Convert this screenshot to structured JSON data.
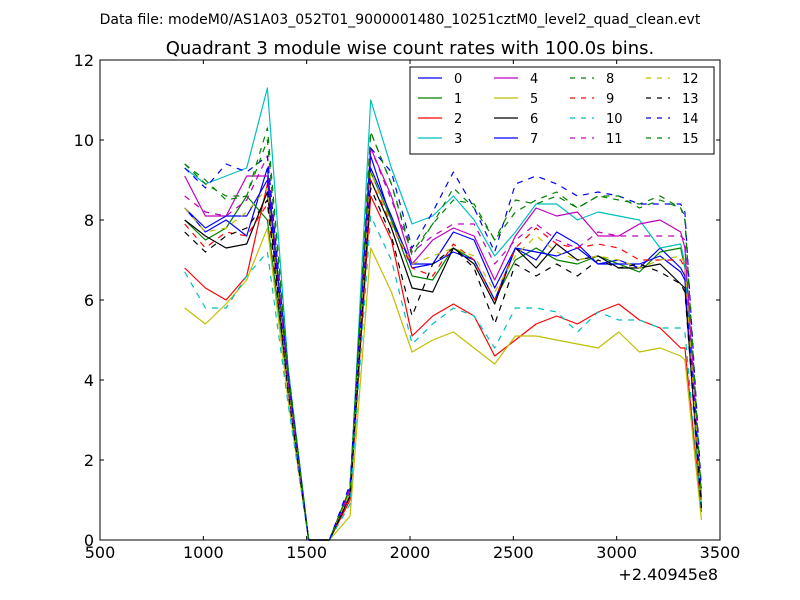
{
  "figure": {
    "suptitle": "Data file: modeM0/AS1A03_052T01_9000001480_10251cztM0_level2_quad_clean.evt"
  },
  "chart_data": {
    "type": "line",
    "title": "Quadrant 3 module wise count rates with 100.0s bins.",
    "xlabel": "",
    "ylabel": "",
    "x_offset_label": "+2.40945e8",
    "xlim": [
      500,
      3500
    ],
    "ylim": [
      0,
      12
    ],
    "x_ticks": [
      500,
      1000,
      1500,
      2000,
      2500,
      3000,
      3500
    ],
    "y_ticks": [
      0,
      2,
      4,
      6,
      8,
      10,
      12
    ],
    "grid": false,
    "legend_position": "top-right",
    "legend_columns": 4,
    "x": [
      910,
      1010,
      1110,
      1210,
      1310,
      1410,
      1510,
      1610,
      1710,
      1810,
      1910,
      2010,
      2110,
      2210,
      2310,
      2410,
      2510,
      2610,
      2710,
      2810,
      2910,
      3010,
      3110,
      3210,
      3310,
      3330,
      3410
    ],
    "series": [
      {
        "name": "0",
        "color": "#0000ff",
        "dash": "solid",
        "values": [
          8.3,
          7.7,
          8.0,
          7.6,
          9.3,
          4.0,
          0,
          0,
          1.3,
          9.6,
          8.0,
          6.9,
          6.9,
          7.7,
          7.5,
          6.3,
          7.3,
          7.0,
          7.7,
          7.4,
          6.9,
          7.0,
          6.8,
          7.3,
          6.8,
          6.6,
          1.0
        ]
      },
      {
        "name": "1",
        "color": "#008000",
        "dash": "solid",
        "values": [
          8.0,
          7.5,
          7.8,
          8.6,
          8.0,
          3.8,
          0,
          0,
          1.3,
          9.2,
          8.0,
          6.6,
          6.5,
          7.3,
          7.0,
          6.0,
          7.0,
          7.3,
          7.0,
          6.9,
          7.1,
          6.9,
          6.7,
          7.2,
          7.3,
          6.8,
          1.0
        ]
      },
      {
        "name": "2",
        "color": "#ff0000",
        "dash": "solid",
        "values": [
          6.8,
          6.3,
          6.0,
          6.6,
          8.9,
          3.8,
          0,
          0,
          1.0,
          8.6,
          7.5,
          5.1,
          5.6,
          5.9,
          5.6,
          4.6,
          5.0,
          5.4,
          5.6,
          5.4,
          5.7,
          5.9,
          5.5,
          5.3,
          4.8,
          4.8,
          0.7
        ]
      },
      {
        "name": "3",
        "color": "#00bfbf",
        "dash": "solid",
        "values": [
          9.3,
          8.9,
          9.1,
          9.3,
          11.3,
          4.3,
          0,
          0,
          1.2,
          11.0,
          9.3,
          7.9,
          8.1,
          8.6,
          8.0,
          7.1,
          7.7,
          8.4,
          8.4,
          8.0,
          8.2,
          8.1,
          8.0,
          7.3,
          7.4,
          6.9,
          1.0
        ]
      },
      {
        "name": "4",
        "color": "#bf00bf",
        "dash": "solid",
        "values": [
          9.1,
          8.1,
          8.1,
          9.1,
          9.1,
          4.0,
          0,
          0,
          1.2,
          9.8,
          8.6,
          6.9,
          7.5,
          7.8,
          7.6,
          6.5,
          7.6,
          8.3,
          8.1,
          8.2,
          7.6,
          7.6,
          7.9,
          8.0,
          7.7,
          7.3,
          1.0
        ]
      },
      {
        "name": "5",
        "color": "#bfbf00",
        "dash": "solid",
        "values": [
          5.8,
          5.4,
          5.9,
          6.5,
          7.8,
          3.5,
          0,
          0,
          0.6,
          7.3,
          6.2,
          4.7,
          5.0,
          5.2,
          4.8,
          4.4,
          5.1,
          5.1,
          5.0,
          4.9,
          4.8,
          5.2,
          4.7,
          4.8,
          4.6,
          4.5,
          0.5
        ]
      },
      {
        "name": "6",
        "color": "#000000",
        "dash": "solid",
        "values": [
          8.0,
          7.6,
          7.3,
          7.4,
          8.7,
          3.8,
          0,
          0,
          1.1,
          9.0,
          7.8,
          6.3,
          6.2,
          7.3,
          6.9,
          5.9,
          7.3,
          6.8,
          7.4,
          7.0,
          7.1,
          6.8,
          6.8,
          6.9,
          6.4,
          6.3,
          0.8
        ]
      },
      {
        "name": "7",
        "color": "#0000ff",
        "dash": "solid",
        "values": [
          8.3,
          7.8,
          8.1,
          8.1,
          9.0,
          4.0,
          0,
          0,
          1.3,
          9.3,
          8.1,
          6.8,
          6.9,
          7.2,
          7.0,
          6.0,
          7.3,
          7.2,
          7.1,
          7.3,
          6.9,
          6.9,
          6.9,
          7.1,
          6.7,
          6.5,
          1.0
        ]
      },
      {
        "name": "8",
        "color": "#008000",
        "dash": "dashed",
        "values": [
          9.4,
          9.0,
          8.5,
          8.6,
          10.3,
          4.3,
          0,
          0,
          1.3,
          10.2,
          8.9,
          7.2,
          7.9,
          8.8,
          8.3,
          7.5,
          8.5,
          8.4,
          8.6,
          8.3,
          8.6,
          8.5,
          8.4,
          8.6,
          8.3,
          8.0,
          1.1
        ]
      },
      {
        "name": "9",
        "color": "#ff0000",
        "dash": "dashed",
        "values": [
          7.9,
          7.3,
          7.7,
          7.6,
          8.4,
          3.8,
          0,
          0,
          1.1,
          9.0,
          7.9,
          6.8,
          6.6,
          7.4,
          7.0,
          6.0,
          7.3,
          7.8,
          7.4,
          7.3,
          7.4,
          7.3,
          7.0,
          7.0,
          7.0,
          6.8,
          0.9
        ]
      },
      {
        "name": "10",
        "color": "#00bfbf",
        "dash": "dashed",
        "values": [
          6.7,
          5.8,
          5.8,
          6.6,
          7.2,
          3.4,
          0,
          0,
          0.9,
          8.1,
          7.0,
          4.9,
          5.4,
          5.8,
          5.6,
          4.8,
          5.8,
          5.8,
          5.7,
          5.2,
          5.7,
          5.5,
          5.5,
          5.3,
          5.3,
          5.2,
          0.7
        ]
      },
      {
        "name": "11",
        "color": "#bf00bf",
        "dash": "dashed",
        "values": [
          8.6,
          8.2,
          8.1,
          8.5,
          9.6,
          3.9,
          0,
          0,
          1.3,
          9.8,
          8.5,
          7.2,
          7.6,
          7.9,
          7.9,
          6.9,
          7.5,
          7.9,
          7.5,
          7.3,
          7.7,
          7.6,
          7.6,
          7.6,
          7.6,
          7.5,
          1.0
        ]
      },
      {
        "name": "12",
        "color": "#bfbf00",
        "dash": "dashed",
        "values": [
          8.3,
          7.7,
          7.8,
          8.2,
          8.8,
          3.8,
          0,
          0,
          1.2,
          9.2,
          7.9,
          6.9,
          7.1,
          7.3,
          7.1,
          6.2,
          7.1,
          7.6,
          7.2,
          7.0,
          7.1,
          7.0,
          6.8,
          7.0,
          7.1,
          6.9,
          0.9
        ]
      },
      {
        "name": "13",
        "color": "#000000",
        "dash": "dashed",
        "values": [
          7.7,
          7.2,
          7.6,
          7.8,
          8.5,
          3.7,
          0,
          0,
          1.1,
          8.8,
          7.6,
          5.6,
          6.9,
          7.3,
          6.8,
          5.4,
          6.9,
          6.6,
          6.9,
          6.6,
          7.0,
          6.8,
          6.9,
          6.7,
          6.4,
          6.2,
          0.8
        ]
      },
      {
        "name": "14",
        "color": "#0000ff",
        "dash": "dashed",
        "values": [
          9.3,
          8.8,
          9.4,
          9.2,
          9.6,
          4.2,
          0,
          0,
          1.4,
          9.8,
          9.2,
          7.3,
          8.2,
          9.2,
          8.3,
          7.2,
          8.9,
          9.1,
          8.9,
          8.6,
          8.7,
          8.6,
          8.4,
          8.4,
          8.4,
          8.2,
          1.3
        ]
      },
      {
        "name": "15",
        "color": "#008000",
        "dash": "dashed",
        "values": [
          9.4,
          8.9,
          8.6,
          8.6,
          10.0,
          4.2,
          0,
          0,
          1.3,
          10.2,
          8.9,
          7.1,
          7.9,
          8.5,
          8.4,
          7.5,
          8.2,
          8.5,
          8.7,
          8.3,
          8.6,
          8.6,
          8.3,
          8.5,
          8.3,
          8.1,
          1.1
        ]
      }
    ]
  }
}
